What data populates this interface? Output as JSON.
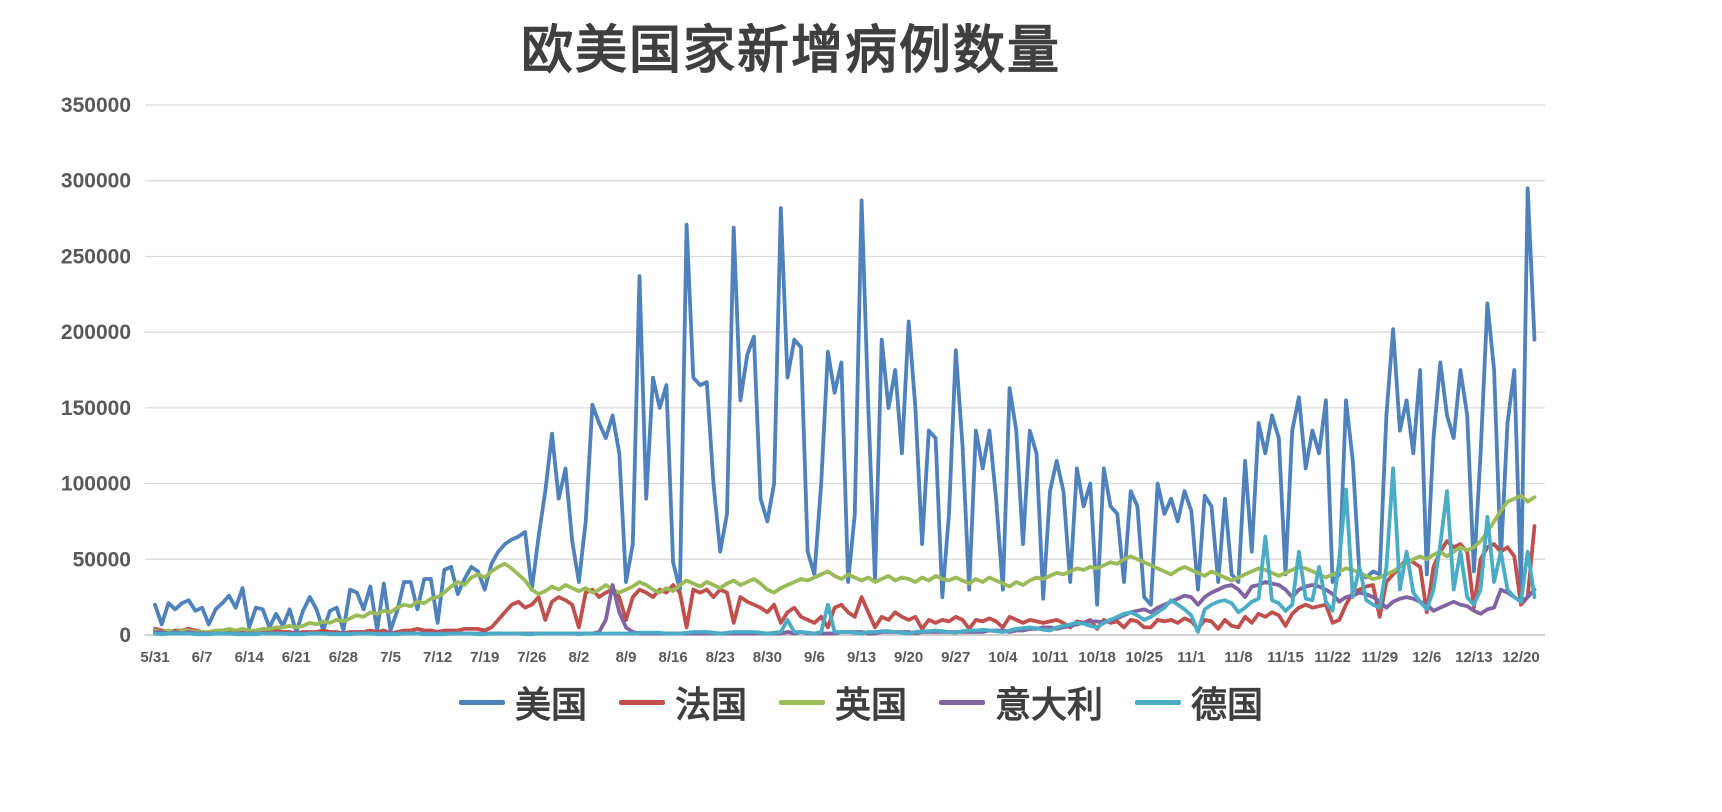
{
  "chart_data": {
    "type": "line",
    "title": "欧美国家新增病例数量",
    "xlabel": "",
    "ylabel": "",
    "ylim": [
      0,
      350000
    ],
    "y_ticks": [
      0,
      50000,
      100000,
      150000,
      200000,
      250000,
      300000,
      350000
    ],
    "grid": true,
    "legend_position": "bottom",
    "points_per_tick": 7,
    "x_tick_labels": [
      "5/31",
      "6/7",
      "6/14",
      "6/21",
      "6/28",
      "7/5",
      "7/12",
      "7/19",
      "7/26",
      "8/2",
      "8/9",
      "8/16",
      "8/23",
      "8/30",
      "9/6",
      "9/13",
      "9/20",
      "9/27",
      "10/4",
      "10/11",
      "10/18",
      "10/25",
      "11/1",
      "11/8",
      "11/15",
      "11/22",
      "11/29",
      "12/6",
      "12/13",
      "12/20"
    ],
    "colors": {
      "grid": "#d9d9d9",
      "axis_text": "#595959",
      "title_text": "#3f3f3f"
    },
    "series": [
      {
        "key": "usa",
        "name": "美国",
        "color": "#4F81BD",
        "values": [
          20000,
          7000,
          21000,
          17000,
          21000,
          23000,
          16000,
          18000,
          7000,
          17000,
          21000,
          26000,
          18000,
          31000,
          5000,
          18000,
          17000,
          5000,
          14000,
          6000,
          17000,
          2000,
          16000,
          25000,
          17000,
          3000,
          16000,
          18000,
          3000,
          30000,
          28000,
          17000,
          32000,
          3000,
          34000,
          3000,
          16000,
          35000,
          35000,
          17000,
          37000,
          37000,
          8000,
          43000,
          45000,
          27000,
          37000,
          45000,
          42000,
          30000,
          47000,
          55000,
          60000,
          63000,
          65000,
          68000,
          30000,
          65000,
          95000,
          133000,
          90000,
          110000,
          62000,
          35000,
          75000,
          152000,
          140000,
          130000,
          145000,
          120000,
          35000,
          60000,
          237000,
          90000,
          170000,
          150000,
          165000,
          48000,
          30000,
          271000,
          170000,
          165000,
          167000,
          100000,
          55000,
          80000,
          269000,
          155000,
          185000,
          197000,
          90000,
          75000,
          100000,
          282000,
          170000,
          195000,
          190000,
          55000,
          40000,
          100000,
          187000,
          160000,
          180000,
          35000,
          80000,
          287000,
          150000,
          36000,
          195000,
          150000,
          175000,
          120000,
          207000,
          150000,
          60000,
          135000,
          130000,
          25000,
          80000,
          188000,
          125000,
          30000,
          135000,
          110000,
          135000,
          90000,
          30000,
          163000,
          135000,
          60000,
          135000,
          120000,
          24000,
          95000,
          115000,
          95000,
          35000,
          110000,
          85000,
          100000,
          20000,
          110000,
          85000,
          80000,
          35000,
          95000,
          85000,
          25000,
          20000,
          100000,
          80000,
          90000,
          75000,
          95000,
          82000,
          30000,
          92000,
          85000,
          35000,
          90000,
          40000,
          35000,
          115000,
          55000,
          140000,
          120000,
          145000,
          130000,
          40000,
          135000,
          157000,
          110000,
          135000,
          120000,
          155000,
          35000,
          40000,
          155000,
          115000,
          40000,
          38000,
          42000,
          40000,
          145000,
          202000,
          135000,
          155000,
          120000,
          175000,
          40000,
          130000,
          180000,
          145000,
          130000,
          175000,
          145000,
          42000,
          120000,
          219000,
          175000,
          50000,
          140000,
          175000,
          30000,
          295000,
          195000
        ]
      },
      {
        "key": "france",
        "name": "法国",
        "color": "#C0504D",
        "values": [
          4000,
          3000,
          2000,
          3000,
          3000,
          4000,
          3000,
          2000,
          1000,
          2000,
          3000,
          3000,
          2000,
          3000,
          2000,
          1000,
          2000,
          2000,
          3000,
          2000,
          2000,
          1000,
          2000,
          2000,
          2000,
          3000,
          2000,
          2000,
          1000,
          2000,
          2000,
          2000,
          3000,
          2000,
          3000,
          1000,
          2000,
          3000,
          3000,
          4000,
          3000,
          3000,
          2000,
          3000,
          3000,
          3000,
          4000,
          4000,
          4000,
          3000,
          5000,
          10000,
          15000,
          20000,
          22000,
          18000,
          20000,
          25000,
          10000,
          22000,
          25000,
          23000,
          20000,
          5000,
          28000,
          30000,
          25000,
          28000,
          30000,
          25000,
          10000,
          25000,
          30000,
          28000,
          25000,
          30000,
          28000,
          33000,
          28000,
          5000,
          30000,
          28000,
          30000,
          25000,
          30000,
          28000,
          8000,
          25000,
          22000,
          20000,
          18000,
          15000,
          20000,
          8000,
          15000,
          18000,
          12000,
          10000,
          8000,
          12000,
          5000,
          18000,
          20000,
          15000,
          12000,
          25000,
          15000,
          5000,
          12000,
          10000,
          15000,
          12000,
          10000,
          12000,
          4000,
          10000,
          8000,
          10000,
          9000,
          12000,
          10000,
          4000,
          10000,
          9000,
          11000,
          9000,
          5000,
          12000,
          10000,
          8000,
          10000,
          9000,
          8000,
          9000,
          10000,
          8000,
          5000,
          9000,
          8000,
          10000,
          4000,
          10000,
          8000,
          9000,
          5000,
          10000,
          9000,
          5000,
          5000,
          10000,
          9000,
          10000,
          8000,
          11000,
          9000,
          4000,
          10000,
          9000,
          4000,
          10000,
          6000,
          5000,
          12000,
          8000,
          14000,
          12000,
          15000,
          13000,
          6000,
          14000,
          18000,
          20000,
          18000,
          19000,
          20000,
          8000,
          10000,
          20000,
          28000,
          30000,
          32000,
          33000,
          12000,
          35000,
          40000,
          45000,
          50000,
          48000,
          45000,
          15000,
          45000,
          55000,
          62000,
          58000,
          60000,
          55000,
          18000,
          50000,
          58000,
          60000,
          55000,
          58000,
          52000,
          20000,
          25000,
          72000
        ]
      },
      {
        "key": "uk",
        "name": "英国",
        "color": "#9BBB59",
        "values": [
          3000,
          2000,
          3000,
          2000,
          3000,
          3000,
          2000,
          2000,
          2000,
          3000,
          3000,
          4000,
          3000,
          4000,
          3000,
          3000,
          4000,
          4000,
          5000,
          5000,
          6000,
          5000,
          6000,
          8000,
          7000,
          9000,
          8000,
          10000,
          9000,
          11000,
          13000,
          12000,
          15000,
          14000,
          16000,
          15000,
          18000,
          20000,
          19000,
          22000,
          21000,
          24000,
          25000,
          28000,
          32000,
          35000,
          33000,
          38000,
          40000,
          38000,
          42000,
          45000,
          47000,
          44000,
          40000,
          36000,
          30000,
          27000,
          29000,
          32000,
          30000,
          33000,
          31000,
          29000,
          31000,
          28000,
          30000,
          33000,
          30000,
          28000,
          30000,
          32000,
          35000,
          33000,
          30000,
          28000,
          31000,
          29000,
          33000,
          36000,
          34000,
          32000,
          35000,
          33000,
          31000,
          34000,
          36000,
          33000,
          35000,
          37000,
          34000,
          30000,
          28000,
          31000,
          33000,
          35000,
          37000,
          36000,
          38000,
          40000,
          42000,
          39000,
          37000,
          40000,
          38000,
          36000,
          38000,
          35000,
          37000,
          39000,
          36000,
          38000,
          37000,
          35000,
          38000,
          36000,
          39000,
          37000,
          36000,
          38000,
          36000,
          34000,
          37000,
          35000,
          38000,
          36000,
          34000,
          32000,
          35000,
          33000,
          36000,
          38000,
          37000,
          39000,
          41000,
          40000,
          42000,
          44000,
          43000,
          45000,
          44000,
          46000,
          48000,
          47000,
          50000,
          52000,
          50000,
          48000,
          46000,
          44000,
          42000,
          40000,
          43000,
          45000,
          43000,
          41000,
          39000,
          42000,
          40000,
          38000,
          36000,
          38000,
          40000,
          42000,
          44000,
          43000,
          41000,
          39000,
          41000,
          43000,
          45000,
          44000,
          42000,
          40000,
          38000,
          40000,
          42000,
          44000,
          43000,
          41000,
          39000,
          37000,
          38000,
          40000,
          42000,
          45000,
          48000,
          50000,
          52000,
          50000,
          53000,
          55000,
          52000,
          55000,
          58000,
          56000,
          58000,
          62000,
          68000,
          75000,
          82000,
          88000,
          90000,
          92000,
          88000,
          91000
        ]
      },
      {
        "key": "italy",
        "name": "意大利",
        "color": "#8064A2",
        "values": [
          2000,
          2000,
          1000,
          2000,
          1000,
          2000,
          1000,
          1000,
          1000,
          1000,
          1000,
          1000,
          1000,
          1000,
          1000,
          1000,
          1000,
          1000,
          1000,
          1000,
          1000,
          1000,
          1000,
          1000,
          1000,
          1000,
          1000,
          1000,
          1000,
          1000,
          1000,
          1000,
          1000,
          1000,
          1000,
          1000,
          1000,
          1000,
          1000,
          1000,
          1000,
          1000,
          1000,
          1000,
          1000,
          1000,
          1000,
          1000,
          1000,
          1000,
          1000,
          1000,
          1000,
          1000,
          1000,
          1000,
          1000,
          1000,
          1000,
          1000,
          1000,
          1000,
          1000,
          1000,
          1000,
          1000,
          2000,
          10000,
          33000,
          15000,
          5000,
          2000,
          1000,
          1000,
          1000,
          1000,
          1000,
          1000,
          1000,
          1000,
          1000,
          1000,
          1000,
          1000,
          1000,
          1000,
          1000,
          1000,
          1000,
          1000,
          1000,
          1000,
          1000,
          1000,
          2000,
          1000,
          2000,
          1000,
          1000,
          1000,
          1000,
          1000,
          2000,
          2000,
          2000,
          2000,
          1000,
          1000,
          2000,
          2000,
          2000,
          2000,
          2000,
          1000,
          2000,
          2000,
          2000,
          2000,
          2000,
          2000,
          2000,
          2000,
          2000,
          2000,
          3000,
          3000,
          3000,
          2000,
          3000,
          3000,
          4000,
          4000,
          5000,
          5000,
          4000,
          5000,
          6000,
          7000,
          8000,
          9000,
          9000,
          8000,
          10000,
          11000,
          13000,
          15000,
          16000,
          17000,
          15000,
          18000,
          20000,
          22000,
          24000,
          26000,
          25000,
          20000,
          25000,
          28000,
          30000,
          32000,
          33000,
          30000,
          25000,
          32000,
          33000,
          35000,
          34000,
          33000,
          30000,
          25000,
          30000,
          32000,
          33000,
          32000,
          30000,
          27000,
          22000,
          25000,
          26000,
          28000,
          27000,
          25000,
          22000,
          18000,
          22000,
          24000,
          25000,
          24000,
          22000,
          20000,
          16000,
          18000,
          20000,
          22000,
          20000,
          19000,
          16000,
          14000,
          17000,
          18000,
          30000,
          28000,
          25000,
          22000,
          25000,
          30000
        ]
      },
      {
        "key": "germany",
        "name": "德国",
        "color": "#4BACC6",
        "values": [
          1000,
          500,
          1000,
          1000,
          1000,
          1000,
          500,
          500,
          500,
          1000,
          1000,
          1000,
          500,
          500,
          500,
          500,
          1000,
          1000,
          1000,
          1000,
          500,
          500,
          500,
          1000,
          1000,
          1000,
          500,
          500,
          500,
          500,
          1000,
          1000,
          1000,
          500,
          500,
          500,
          500,
          1000,
          1000,
          1000,
          500,
          500,
          500,
          500,
          1000,
          1000,
          1000,
          1000,
          500,
          500,
          1000,
          1000,
          1000,
          1000,
          1000,
          500,
          500,
          1000,
          1000,
          1000,
          1000,
          1000,
          1000,
          500,
          1000,
          1000,
          1000,
          1000,
          1000,
          1000,
          1000,
          1000,
          1500,
          1500,
          1500,
          1500,
          1000,
          1000,
          1000,
          1500,
          2000,
          2000,
          2000,
          1500,
          1000,
          1500,
          2000,
          2000,
          2000,
          2000,
          1500,
          1000,
          1500,
          2000,
          10000,
          2000,
          2000,
          1500,
          1000,
          2000,
          20000,
          2000,
          2000,
          2000,
          1500,
          1000,
          2000,
          2000,
          2500,
          2500,
          2000,
          1500,
          1000,
          2000,
          2500,
          2500,
          3000,
          2500,
          2000,
          1500,
          2500,
          3000,
          3000,
          3500,
          3000,
          2500,
          2000,
          3000,
          4000,
          4500,
          5000,
          4500,
          3500,
          3000,
          5000,
          6000,
          7000,
          8000,
          7500,
          6000,
          5000,
          8000,
          10000,
          12000,
          14000,
          15000,
          13000,
          10000,
          12000,
          15000,
          18000,
          23000,
          20000,
          17000,
          13000,
          2000,
          17000,
          20000,
          22000,
          23000,
          21000,
          15000,
          18000,
          22000,
          24000,
          65000,
          23000,
          21000,
          16000,
          20000,
          55000,
          24000,
          23000,
          45000,
          22000,
          16000,
          50000,
          96000,
          25000,
          45000,
          23000,
          20000,
          18000,
          45000,
          110000,
          30000,
          55000,
          28000,
          22000,
          17000,
          30000,
          60000,
          95000,
          30000,
          55000,
          25000,
          20000,
          30000,
          78000,
          35000,
          55000,
          30000,
          25000,
          22000,
          55000,
          25000
        ]
      }
    ]
  }
}
